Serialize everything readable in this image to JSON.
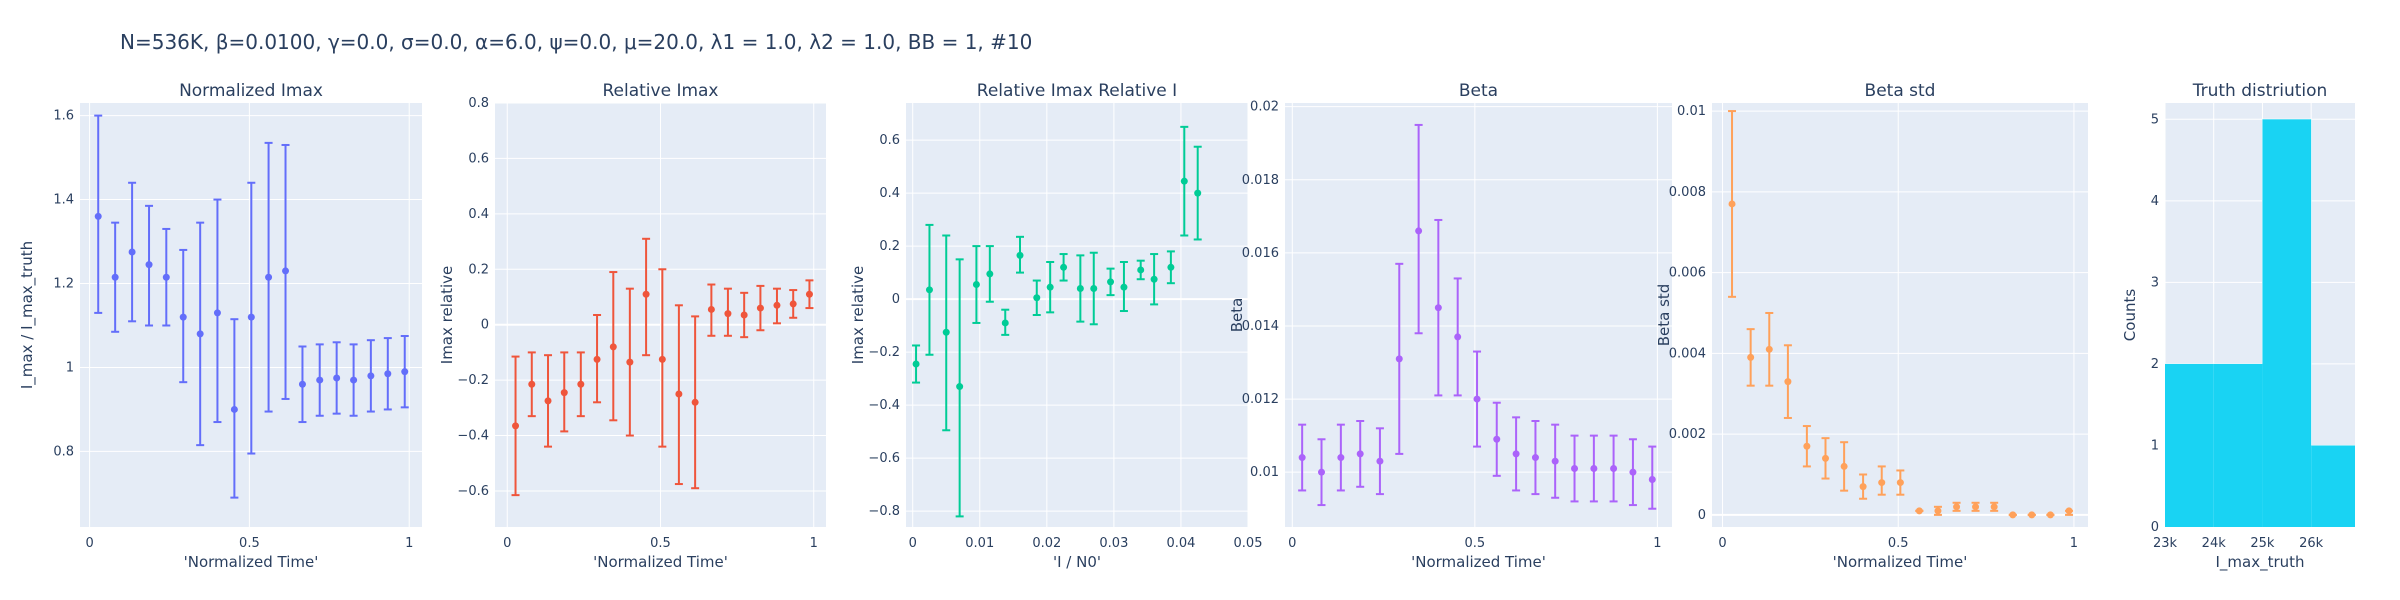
{
  "figure_title": "N=536K, β=0.0100, γ=0.0, σ=0.0,  α=6.0, ψ=0.0, μ=20.0, λ1 = 1.0, λ2 = 1.0, BB = 1, #10",
  "chart_data": [
    {
      "type": "scatter",
      "title": "Normalized Imax",
      "xlabel": "'Normalized Time'",
      "ylabel": "I_max / I_max_truth",
      "color": "#636efa",
      "xlim": [
        -0.03,
        1.04
      ],
      "ylim": [
        0.62,
        1.63
      ],
      "xticks": [
        {
          "v": 0,
          "t": "0"
        },
        {
          "v": 0.5,
          "t": "0.5"
        },
        {
          "v": 1,
          "t": "1"
        }
      ],
      "yticks": [
        {
          "v": 0.8,
          "t": "0.8"
        },
        {
          "v": 1,
          "t": "1"
        },
        {
          "v": 1.2,
          "t": "1.2"
        },
        {
          "v": 1.4,
          "t": "1.4"
        },
        {
          "v": 1.6,
          "t": "1.6"
        }
      ],
      "points": [
        {
          "x": 0.027,
          "y": 1.36,
          "lo": 1.13,
          "hi": 1.6
        },
        {
          "x": 0.08,
          "y": 1.215,
          "lo": 1.085,
          "hi": 1.345
        },
        {
          "x": 0.133,
          "y": 1.275,
          "lo": 1.11,
          "hi": 1.44
        },
        {
          "x": 0.186,
          "y": 1.245,
          "lo": 1.1,
          "hi": 1.385
        },
        {
          "x": 0.24,
          "y": 1.215,
          "lo": 1.1,
          "hi": 1.33
        },
        {
          "x": 0.293,
          "y": 1.12,
          "lo": 0.965,
          "hi": 1.28
        },
        {
          "x": 0.346,
          "y": 1.08,
          "lo": 0.815,
          "hi": 1.345
        },
        {
          "x": 0.4,
          "y": 1.13,
          "lo": 0.87,
          "hi": 1.4
        },
        {
          "x": 0.453,
          "y": 0.9,
          "lo": 0.69,
          "hi": 1.115
        },
        {
          "x": 0.506,
          "y": 1.12,
          "lo": 0.795,
          "hi": 1.44
        },
        {
          "x": 0.56,
          "y": 1.215,
          "lo": 0.895,
          "hi": 1.535
        },
        {
          "x": 0.613,
          "y": 1.23,
          "lo": 0.925,
          "hi": 1.53
        },
        {
          "x": 0.666,
          "y": 0.96,
          "lo": 0.87,
          "hi": 1.05
        },
        {
          "x": 0.72,
          "y": 0.97,
          "lo": 0.885,
          "hi": 1.055
        },
        {
          "x": 0.773,
          "y": 0.975,
          "lo": 0.89,
          "hi": 1.06
        },
        {
          "x": 0.826,
          "y": 0.97,
          "lo": 0.885,
          "hi": 1.055
        },
        {
          "x": 0.88,
          "y": 0.98,
          "lo": 0.895,
          "hi": 1.065
        },
        {
          "x": 0.933,
          "y": 0.985,
          "lo": 0.9,
          "hi": 1.07
        },
        {
          "x": 0.986,
          "y": 0.99,
          "lo": 0.905,
          "hi": 1.075
        }
      ]
    },
    {
      "type": "scatter",
      "title": "Relative Imax",
      "xlabel": "'Normalized Time'",
      "ylabel": "Imax relative",
      "color": "#ef553b",
      "xlim": [
        -0.04,
        1.04
      ],
      "ylim": [
        -0.73,
        0.8
      ],
      "xticks": [
        {
          "v": 0,
          "t": "0"
        },
        {
          "v": 0.5,
          "t": "0.5"
        },
        {
          "v": 1,
          "t": "1"
        }
      ],
      "yticks": [
        {
          "v": -0.6,
          "t": "−0.6"
        },
        {
          "v": -0.4,
          "t": "−0.4"
        },
        {
          "v": -0.2,
          "t": "−0.2"
        },
        {
          "v": 0,
          "t": "0"
        },
        {
          "v": 0.2,
          "t": "0.2"
        },
        {
          "v": 0.4,
          "t": "0.4"
        },
        {
          "v": 0.6,
          "t": "0.6"
        },
        {
          "v": 0.8,
          "t": "0.8"
        }
      ],
      "points": [
        {
          "x": 0.027,
          "y": -0.365,
          "lo": -0.615,
          "hi": -0.115
        },
        {
          "x": 0.08,
          "y": -0.215,
          "lo": -0.33,
          "hi": -0.1
        },
        {
          "x": 0.133,
          "y": -0.275,
          "lo": -0.44,
          "hi": -0.11
        },
        {
          "x": 0.186,
          "y": -0.245,
          "lo": -0.385,
          "hi": -0.1
        },
        {
          "x": 0.24,
          "y": -0.215,
          "lo": -0.33,
          "hi": -0.1
        },
        {
          "x": 0.293,
          "y": -0.125,
          "lo": -0.28,
          "hi": 0.035
        },
        {
          "x": 0.346,
          "y": -0.08,
          "lo": -0.345,
          "hi": 0.19
        },
        {
          "x": 0.4,
          "y": -0.135,
          "lo": -0.4,
          "hi": 0.13
        },
        {
          "x": 0.453,
          "y": 0.11,
          "lo": -0.11,
          "hi": 0.31
        },
        {
          "x": 0.506,
          "y": -0.125,
          "lo": -0.44,
          "hi": 0.2
        },
        {
          "x": 0.56,
          "y": -0.25,
          "lo": -0.575,
          "hi": 0.07
        },
        {
          "x": 0.613,
          "y": -0.28,
          "lo": -0.59,
          "hi": 0.03
        },
        {
          "x": 0.666,
          "y": 0.055,
          "lo": -0.04,
          "hi": 0.145
        },
        {
          "x": 0.72,
          "y": 0.04,
          "lo": -0.04,
          "hi": 0.13
        },
        {
          "x": 0.773,
          "y": 0.035,
          "lo": -0.045,
          "hi": 0.115
        },
        {
          "x": 0.826,
          "y": 0.06,
          "lo": -0.02,
          "hi": 0.14
        },
        {
          "x": 0.88,
          "y": 0.07,
          "lo": 0.005,
          "hi": 0.13
        },
        {
          "x": 0.933,
          "y": 0.075,
          "lo": 0.025,
          "hi": 0.125
        },
        {
          "x": 0.986,
          "y": 0.11,
          "lo": 0.06,
          "hi": 0.16
        }
      ]
    },
    {
      "type": "scatter",
      "title": "Relative Imax Relative I",
      "xlabel": "'I / N0'",
      "ylabel": "Imax relative",
      "color": "#00cc96",
      "xlim": [
        -0.001,
        0.05
      ],
      "ylim": [
        -0.86,
        0.74
      ],
      "xticks": [
        {
          "v": 0,
          "t": "0"
        },
        {
          "v": 0.01,
          "t": "0.01"
        },
        {
          "v": 0.02,
          "t": "0.02"
        },
        {
          "v": 0.03,
          "t": "0.03"
        },
        {
          "v": 0.04,
          "t": "0.04"
        },
        {
          "v": 0.05,
          "t": "0.05"
        }
      ],
      "yticks": [
        {
          "v": -0.8,
          "t": "−0.8"
        },
        {
          "v": -0.6,
          "t": "−0.6"
        },
        {
          "v": -0.4,
          "t": "−0.4"
        },
        {
          "v": -0.2,
          "t": "−0.2"
        },
        {
          "v": 0,
          "t": "0"
        },
        {
          "v": 0.2,
          "t": "0.2"
        },
        {
          "v": 0.4,
          "t": "0.4"
        },
        {
          "v": 0.6,
          "t": "0.6"
        }
      ],
      "points": [
        {
          "x": 0.0005,
          "y": -0.245,
          "lo": -0.315,
          "hi": -0.175
        },
        {
          "x": 0.0025,
          "y": 0.035,
          "lo": -0.21,
          "hi": 0.28
        },
        {
          "x": 0.005,
          "y": -0.125,
          "lo": -0.495,
          "hi": 0.24
        },
        {
          "x": 0.007,
          "y": -0.33,
          "lo": -0.82,
          "hi": 0.15
        },
        {
          "x": 0.0095,
          "y": 0.055,
          "lo": -0.09,
          "hi": 0.2
        },
        {
          "x": 0.0115,
          "y": 0.095,
          "lo": -0.01,
          "hi": 0.2
        },
        {
          "x": 0.0138,
          "y": -0.09,
          "lo": -0.135,
          "hi": -0.04
        },
        {
          "x": 0.016,
          "y": 0.165,
          "lo": 0.1,
          "hi": 0.235
        },
        {
          "x": 0.0185,
          "y": 0.005,
          "lo": -0.06,
          "hi": 0.07
        },
        {
          "x": 0.0205,
          "y": 0.045,
          "lo": -0.05,
          "hi": 0.14
        },
        {
          "x": 0.0225,
          "y": 0.12,
          "lo": 0.07,
          "hi": 0.17
        },
        {
          "x": 0.025,
          "y": 0.04,
          "lo": -0.085,
          "hi": 0.165
        },
        {
          "x": 0.027,
          "y": 0.04,
          "lo": -0.095,
          "hi": 0.175
        },
        {
          "x": 0.0295,
          "y": 0.065,
          "lo": 0.015,
          "hi": 0.115
        },
        {
          "x": 0.0315,
          "y": 0.045,
          "lo": -0.045,
          "hi": 0.14
        },
        {
          "x": 0.034,
          "y": 0.11,
          "lo": 0.075,
          "hi": 0.145
        },
        {
          "x": 0.036,
          "y": 0.075,
          "lo": -0.02,
          "hi": 0.17
        },
        {
          "x": 0.0385,
          "y": 0.12,
          "lo": 0.06,
          "hi": 0.18
        },
        {
          "x": 0.0405,
          "y": 0.445,
          "lo": 0.24,
          "hi": 0.65
        },
        {
          "x": 0.0425,
          "y": 0.4,
          "lo": 0.225,
          "hi": 0.575
        }
      ]
    },
    {
      "type": "scatter",
      "title": "Beta",
      "xlabel": "'Normalized Time'",
      "ylabel": "Beta",
      "color": "#ab63fa",
      "xlim": [
        -0.02,
        1.04
      ],
      "ylim": [
        0.0085,
        0.0201
      ],
      "xticks": [
        {
          "v": 0,
          "t": "0"
        },
        {
          "v": 0.5,
          "t": "0.5"
        },
        {
          "v": 1,
          "t": "1"
        }
      ],
      "yticks": [
        {
          "v": 0.01,
          "t": "0.01"
        },
        {
          "v": 0.012,
          "t": "0.012"
        },
        {
          "v": 0.014,
          "t": "0.014"
        },
        {
          "v": 0.016,
          "t": "0.016"
        },
        {
          "v": 0.018,
          "t": "0.018"
        },
        {
          "v": 0.02,
          "t": "0.02"
        }
      ],
      "points": [
        {
          "x": 0.027,
          "y": 0.0104,
          "lo": 0.0095,
          "hi": 0.0113
        },
        {
          "x": 0.08,
          "y": 0.01,
          "lo": 0.0091,
          "hi": 0.0109
        },
        {
          "x": 0.133,
          "y": 0.0104,
          "lo": 0.0095,
          "hi": 0.0113
        },
        {
          "x": 0.186,
          "y": 0.0105,
          "lo": 0.0096,
          "hi": 0.0114
        },
        {
          "x": 0.24,
          "y": 0.0103,
          "lo": 0.0094,
          "hi": 0.0112
        },
        {
          "x": 0.293,
          "y": 0.0131,
          "lo": 0.0105,
          "hi": 0.0157
        },
        {
          "x": 0.346,
          "y": 0.0166,
          "lo": 0.0138,
          "hi": 0.0195
        },
        {
          "x": 0.4,
          "y": 0.0145,
          "lo": 0.0121,
          "hi": 0.0169
        },
        {
          "x": 0.453,
          "y": 0.0137,
          "lo": 0.0121,
          "hi": 0.0153
        },
        {
          "x": 0.506,
          "y": 0.012,
          "lo": 0.0107,
          "hi": 0.0133
        },
        {
          "x": 0.56,
          "y": 0.0109,
          "lo": 0.0099,
          "hi": 0.0119
        },
        {
          "x": 0.613,
          "y": 0.0105,
          "lo": 0.0095,
          "hi": 0.0115
        },
        {
          "x": 0.666,
          "y": 0.0104,
          "lo": 0.0094,
          "hi": 0.0114
        },
        {
          "x": 0.72,
          "y": 0.0103,
          "lo": 0.0093,
          "hi": 0.0113
        },
        {
          "x": 0.773,
          "y": 0.0101,
          "lo": 0.0092,
          "hi": 0.011
        },
        {
          "x": 0.826,
          "y": 0.0101,
          "lo": 0.0092,
          "hi": 0.011
        },
        {
          "x": 0.88,
          "y": 0.0101,
          "lo": 0.0092,
          "hi": 0.011
        },
        {
          "x": 0.933,
          "y": 0.01,
          "lo": 0.0091,
          "hi": 0.0109
        },
        {
          "x": 0.986,
          "y": 0.0098,
          "lo": 0.009,
          "hi": 0.0107
        }
      ]
    },
    {
      "type": "scatter",
      "title": "Beta std",
      "xlabel": "'Normalized Time'",
      "ylabel": "Beta std",
      "color": "#ffa15a",
      "xlim": [
        -0.03,
        1.04
      ],
      "ylim": [
        -0.0003,
        0.0102
      ],
      "xticks": [
        {
          "v": 0,
          "t": "0"
        },
        {
          "v": 0.5,
          "t": "0.5"
        },
        {
          "v": 1,
          "t": "1"
        }
      ],
      "yticks": [
        {
          "v": 0,
          "t": "0"
        },
        {
          "v": 0.002,
          "t": "0.002"
        },
        {
          "v": 0.004,
          "t": "0.004"
        },
        {
          "v": 0.006,
          "t": "0.006"
        },
        {
          "v": 0.008,
          "t": "0.008"
        },
        {
          "v": 0.01,
          "t": "0.01"
        }
      ],
      "points": [
        {
          "x": 0.027,
          "y": 0.0077,
          "lo": 0.0054,
          "hi": 0.01
        },
        {
          "x": 0.08,
          "y": 0.0039,
          "lo": 0.0032,
          "hi": 0.0046
        },
        {
          "x": 0.133,
          "y": 0.0041,
          "lo": 0.0032,
          "hi": 0.005
        },
        {
          "x": 0.186,
          "y": 0.0033,
          "lo": 0.0024,
          "hi": 0.0042
        },
        {
          "x": 0.24,
          "y": 0.0017,
          "lo": 0.0012,
          "hi": 0.0022
        },
        {
          "x": 0.293,
          "y": 0.0014,
          "lo": 0.0009,
          "hi": 0.0019
        },
        {
          "x": 0.346,
          "y": 0.0012,
          "lo": 0.0006,
          "hi": 0.0018
        },
        {
          "x": 0.4,
          "y": 0.0007,
          "lo": 0.0004,
          "hi": 0.001
        },
        {
          "x": 0.453,
          "y": 0.0008,
          "lo": 0.0005,
          "hi": 0.0012
        },
        {
          "x": 0.506,
          "y": 0.0008,
          "lo": 0.0005,
          "hi": 0.0011
        },
        {
          "x": 0.56,
          "y": 0.0001,
          "lo": 0.0001,
          "hi": 0.0001
        },
        {
          "x": 0.613,
          "y": 0.0001,
          "lo": 0.0,
          "hi": 0.0002
        },
        {
          "x": 0.666,
          "y": 0.0002,
          "lo": 0.0001,
          "hi": 0.0003
        },
        {
          "x": 0.72,
          "y": 0.0002,
          "lo": 0.0001,
          "hi": 0.0003
        },
        {
          "x": 0.773,
          "y": 0.0002,
          "lo": 0.0001,
          "hi": 0.0003
        },
        {
          "x": 0.826,
          "y": 0.0,
          "lo": 0.0,
          "hi": 0.0
        },
        {
          "x": 0.88,
          "y": 0.0,
          "lo": 0.0,
          "hi": 0.0
        },
        {
          "x": 0.933,
          "y": 0.0,
          "lo": 0.0,
          "hi": 0.0
        },
        {
          "x": 0.986,
          "y": 0.0001,
          "lo": 0.0,
          "hi": 0.0001
        }
      ]
    },
    {
      "type": "bar",
      "title": "Truth distriution",
      "xlabel": "I_max_truth",
      "ylabel": "Counts",
      "color": "#19d3f3",
      "xlim": [
        23000,
        26900
      ],
      "ylim": [
        0,
        5.2
      ],
      "xticks": [
        {
          "v": 23000,
          "t": "23k"
        },
        {
          "v": 24000,
          "t": "24k"
        },
        {
          "v": 25000,
          "t": "25k"
        },
        {
          "v": 26000,
          "t": "26k"
        }
      ],
      "yticks": [
        {
          "v": 0,
          "t": "0"
        },
        {
          "v": 1,
          "t": "1"
        },
        {
          "v": 2,
          "t": "2"
        },
        {
          "v": 3,
          "t": "3"
        },
        {
          "v": 4,
          "t": "4"
        },
        {
          "v": 5,
          "t": "5"
        }
      ],
      "bins": [
        {
          "x0": 23000,
          "x1": 24000,
          "count": 2
        },
        {
          "x0": 24000,
          "x1": 25000,
          "count": 2
        },
        {
          "x0": 25000,
          "x1": 26000,
          "count": 5
        },
        {
          "x0": 26000,
          "x1": 26900,
          "count": 1
        }
      ]
    }
  ]
}
